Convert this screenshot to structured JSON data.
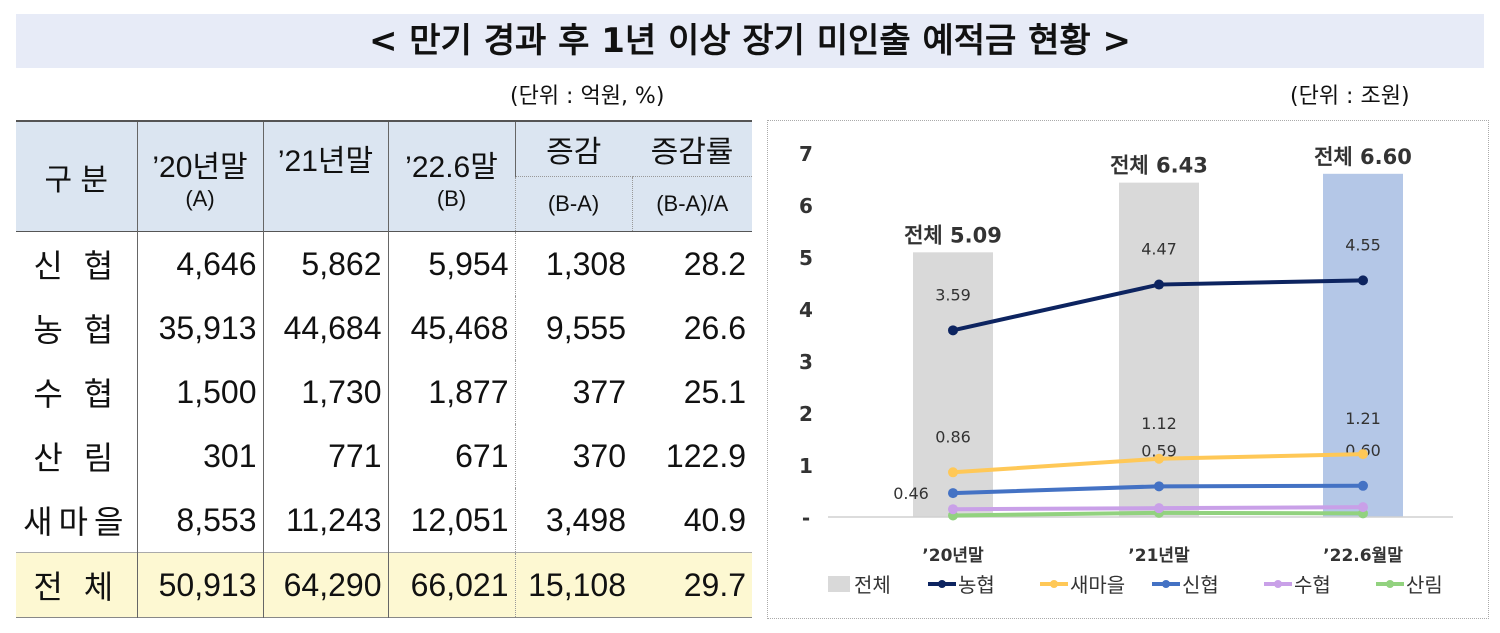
{
  "title": "< 만기 경과 후 1년 이상 장기 미인출 예적금 현황 >",
  "table_unit": "(단위 : 억원, %)",
  "chart_unit": "(단위 : 조원)",
  "table": {
    "headers": {
      "category": "구 분",
      "c1": "’20년말",
      "c1_sub": "(A)",
      "c2": "’21년말",
      "c3": "’22.6말",
      "c3_sub": "(B)",
      "c4": "증감",
      "c4_sub": "(B-A)",
      "c5": "증감률",
      "c5_sub": "(B-A)/A"
    },
    "rows": [
      {
        "name": "신 협",
        "v": [
          "4,646",
          "5,862",
          "5,954",
          "1,308",
          "28.2"
        ]
      },
      {
        "name": "농 협",
        "v": [
          "35,913",
          "44,684",
          "45,468",
          "9,555",
          "26.6"
        ]
      },
      {
        "name": "수 협",
        "v": [
          "1,500",
          "1,730",
          "1,877",
          "377",
          "25.1"
        ]
      },
      {
        "name": "산 림",
        "v": [
          "301",
          "771",
          "671",
          "370",
          "122.9"
        ]
      },
      {
        "name": "새마을",
        "v": [
          "8,553",
          "11,243",
          "12,051",
          "3,498",
          "40.9"
        ]
      },
      {
        "name": "전 체",
        "v": [
          "50,913",
          "64,290",
          "66,021",
          "15,108",
          "29.7"
        ]
      }
    ]
  },
  "chart_data": {
    "type": "bar+line",
    "categories": [
      "’20년말",
      "’21년말",
      "’22.6월말"
    ],
    "yticks": [
      "-",
      "1",
      "2",
      "3",
      "4",
      "5",
      "6",
      "7"
    ],
    "ylim": [
      0,
      7
    ],
    "bars": {
      "name": "전체",
      "values": [
        5.09,
        6.43,
        6.6
      ],
      "labels": [
        "전체 5.09",
        "전체 6.43",
        "전체 6.60"
      ],
      "colors": [
        "#d9d9d9",
        "#d9d9d9",
        "#b4c7e7"
      ]
    },
    "series": [
      {
        "name": "농협",
        "values": [
          3.59,
          4.47,
          4.55
        ],
        "labels": [
          "3.59",
          "4.47",
          "4.55"
        ],
        "color": "#0d2460"
      },
      {
        "name": "새마을",
        "values": [
          0.86,
          1.12,
          1.21
        ],
        "labels": [
          "0.86",
          "1.12",
          "1.21"
        ],
        "color": "#ffc857"
      },
      {
        "name": "신협",
        "values": [
          0.46,
          0.59,
          0.6
        ],
        "labels": [
          "0.46",
          "0.59",
          "0.60"
        ],
        "color": "#4472c4"
      },
      {
        "name": "수협",
        "values": [
          0.15,
          0.17,
          0.19
        ],
        "color": "#c9a0e8"
      },
      {
        "name": "산림",
        "values": [
          0.03,
          0.08,
          0.07
        ],
        "color": "#92d27f"
      }
    ]
  }
}
